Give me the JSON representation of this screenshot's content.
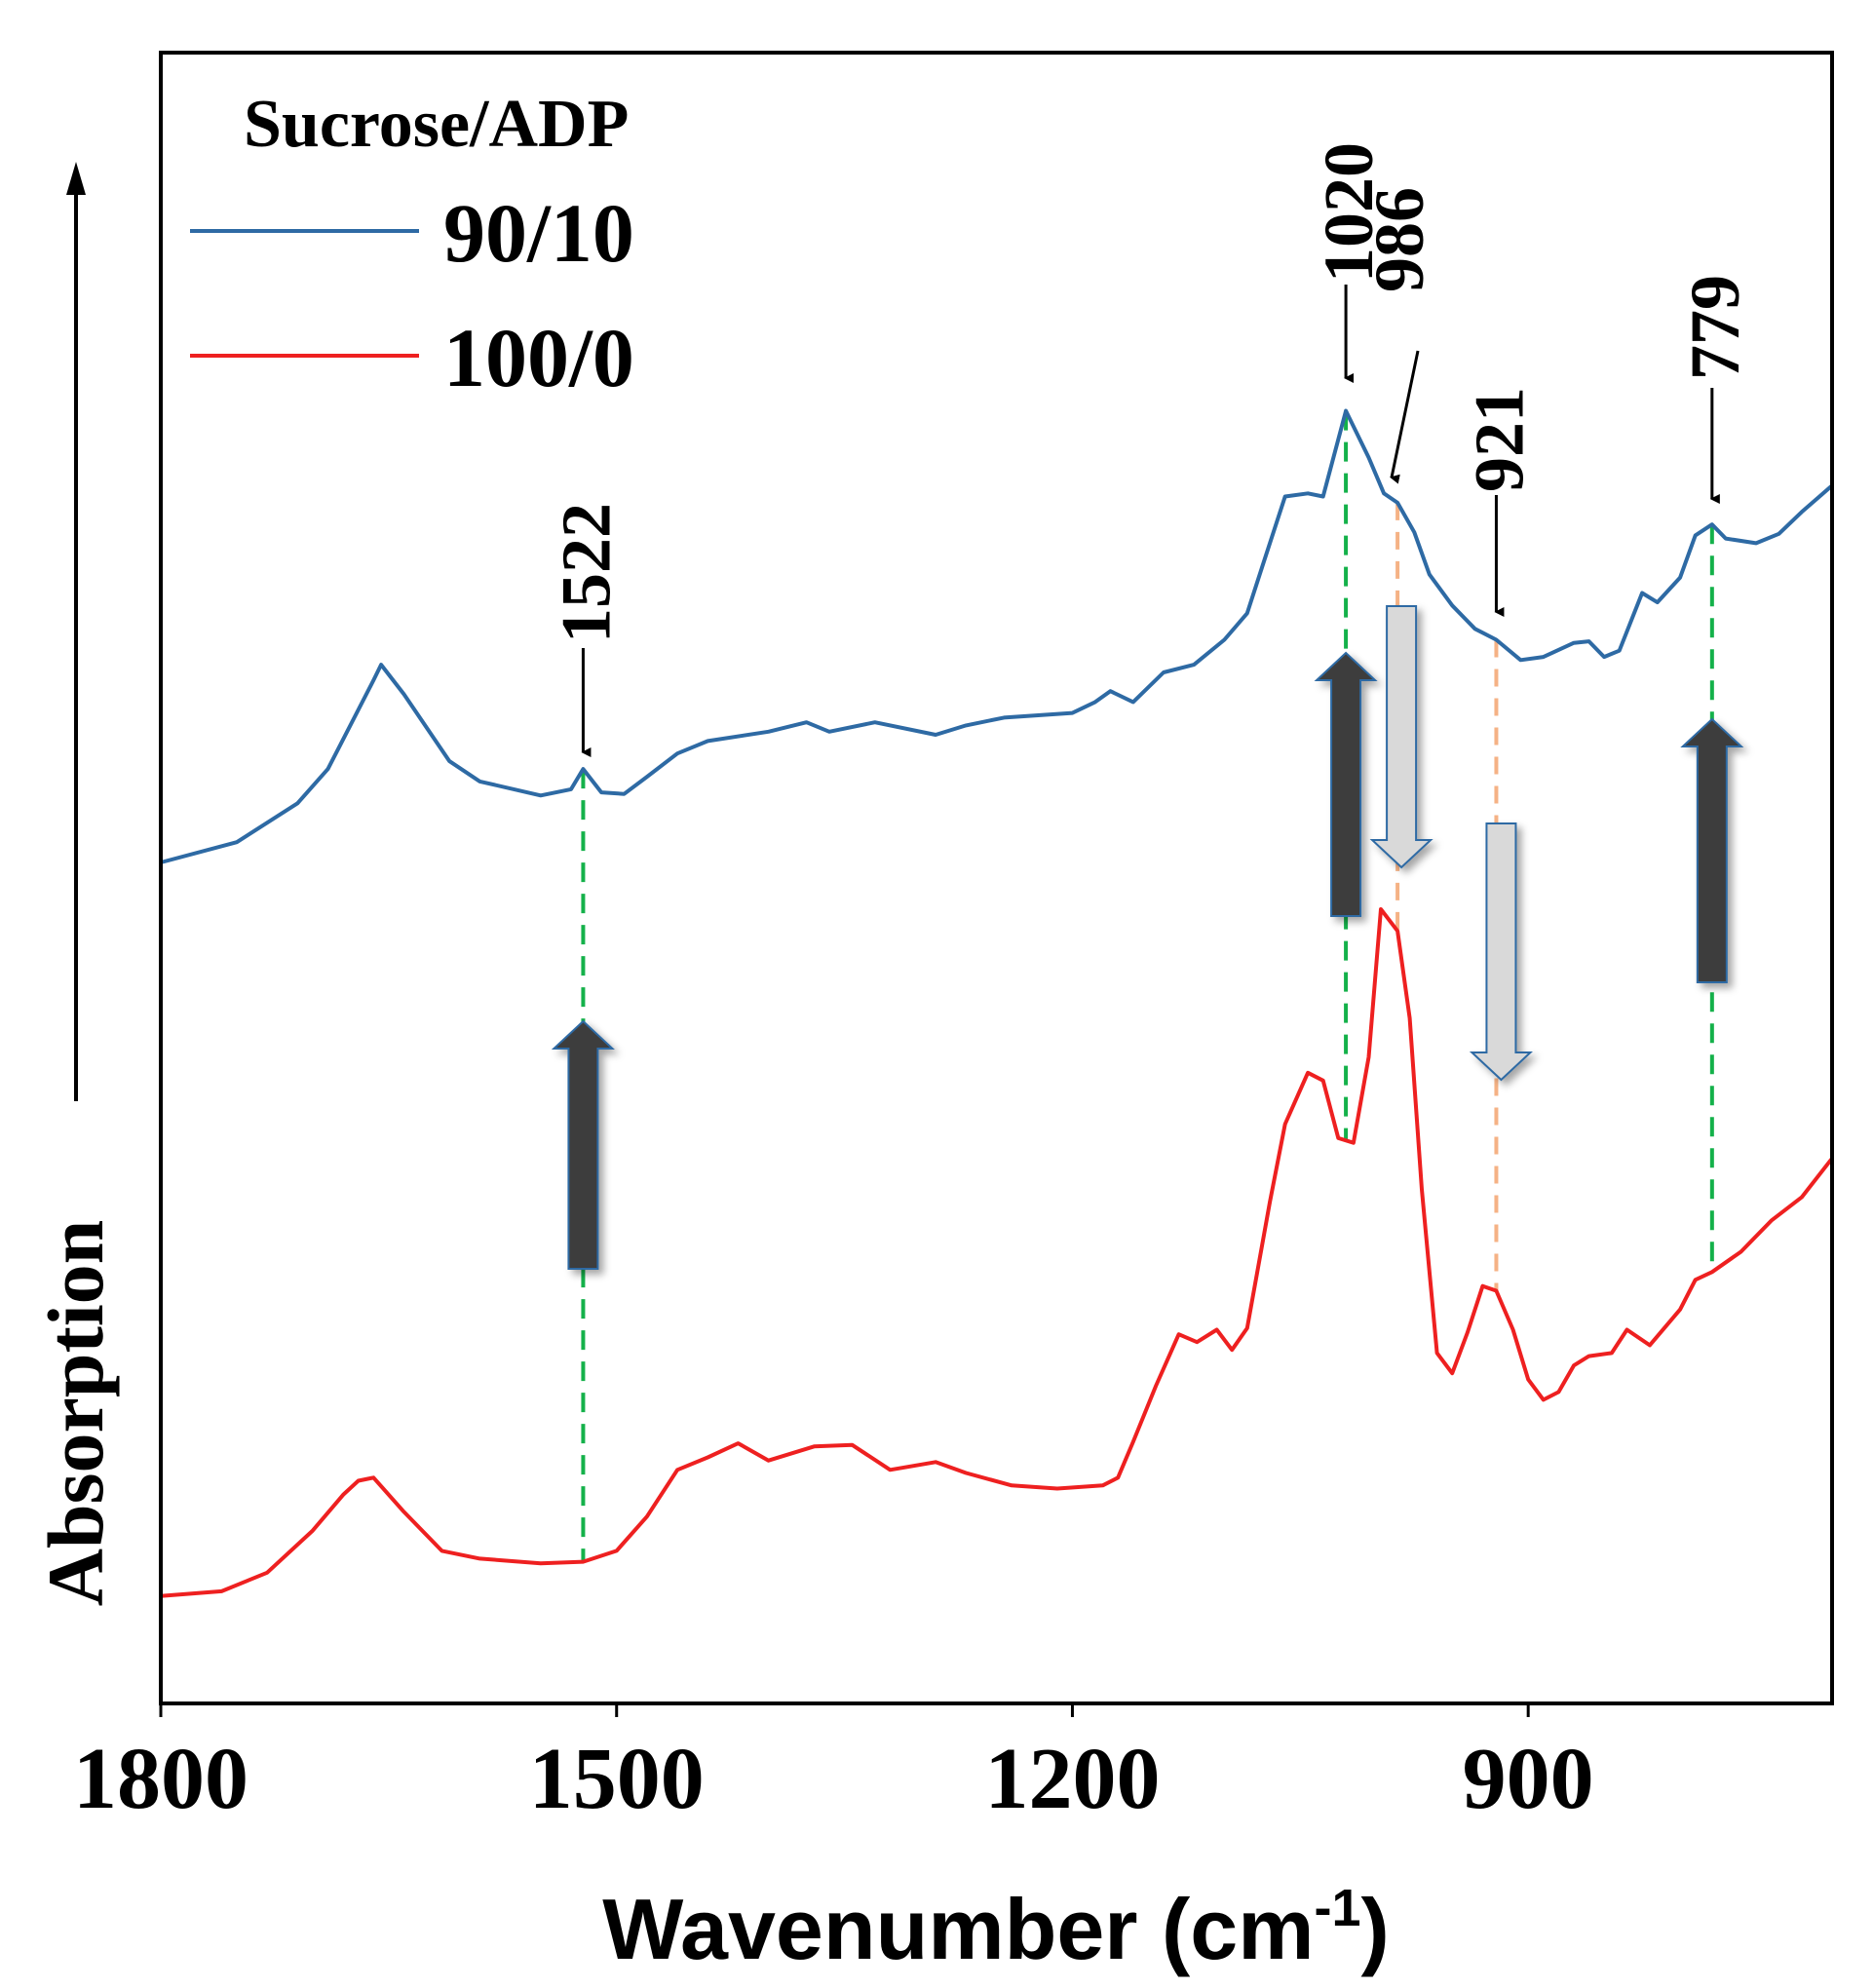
{
  "chart_data": {
    "type": "line",
    "title": "",
    "xlabel": "Wavenumber (cm",
    "xlabel_sup": "-1",
    "xlabel_close": ")",
    "ylabel": "Absorption",
    "xlim": [
      1800,
      700
    ],
    "ylim": [
      0,
      1.06
    ],
    "xticks": [
      1800,
      1500,
      1200,
      900
    ],
    "xtick_labels": [
      "1800",
      "1500",
      "1200",
      "900"
    ],
    "legend_title": "Sucrose/ADP",
    "legend_position": "top-left",
    "series": [
      {
        "name": "90/10",
        "color": "#2e6aa4",
        "x": [
          1800,
          1750,
          1710,
          1690,
          1660,
          1655,
          1640,
          1610,
          1590,
          1550,
          1530,
          1522,
          1510,
          1495,
          1480,
          1460,
          1440,
          1400,
          1375,
          1360,
          1330,
          1290,
          1270,
          1245,
          1200,
          1185,
          1175,
          1160,
          1140,
          1120,
          1100,
          1085,
          1075,
          1060,
          1045,
          1035,
          1020,
          1005,
          995,
          986,
          975,
          965,
          950,
          935,
          921,
          905,
          890,
          870,
          860,
          850,
          840,
          825,
          815,
          800,
          790,
          779,
          770,
          750,
          735,
          720,
          700
        ],
        "y": [
          0.54,
          0.553,
          0.578,
          0.6,
          0.657,
          0.667,
          0.648,
          0.605,
          0.592,
          0.583,
          0.587,
          0.6,
          0.585,
          0.584,
          0.595,
          0.61,
          0.618,
          0.624,
          0.63,
          0.624,
          0.63,
          0.622,
          0.628,
          0.633,
          0.636,
          0.643,
          0.65,
          0.643,
          0.662,
          0.667,
          0.683,
          0.7,
          0.73,
          0.775,
          0.777,
          0.775,
          0.83,
          0.8,
          0.777,
          0.771,
          0.752,
          0.725,
          0.705,
          0.69,
          0.683,
          0.67,
          0.672,
          0.681,
          0.682,
          0.672,
          0.676,
          0.713,
          0.707,
          0.723,
          0.75,
          0.757,
          0.748,
          0.745,
          0.751,
          0.765,
          0.782
        ]
      },
      {
        "name": "100/0",
        "color": "#ee2020",
        "x": [
          1800,
          1760,
          1730,
          1700,
          1680,
          1670,
          1660,
          1640,
          1615,
          1590,
          1550,
          1522,
          1500,
          1480,
          1460,
          1440,
          1420,
          1400,
          1370,
          1345,
          1320,
          1290,
          1270,
          1240,
          1210,
          1180,
          1170,
          1160,
          1145,
          1130,
          1118,
          1105,
          1095,
          1085,
          1070,
          1060,
          1045,
          1035,
          1025,
          1015,
          1005,
          997,
          986,
          978,
          970,
          960,
          950,
          940,
          930,
          921,
          910,
          900,
          890,
          880,
          870,
          860,
          845,
          835,
          820,
          800,
          790,
          779,
          760,
          740,
          720,
          700
        ],
        "y": [
          0.069,
          0.072,
          0.084,
          0.111,
          0.134,
          0.143,
          0.145,
          0.123,
          0.098,
          0.093,
          0.09,
          0.091,
          0.098,
          0.12,
          0.15,
          0.158,
          0.167,
          0.156,
          0.165,
          0.166,
          0.15,
          0.155,
          0.148,
          0.14,
          0.138,
          0.14,
          0.145,
          0.168,
          0.204,
          0.237,
          0.232,
          0.24,
          0.227,
          0.241,
          0.322,
          0.372,
          0.405,
          0.4,
          0.363,
          0.36,
          0.415,
          0.51,
          0.496,
          0.44,
          0.33,
          0.225,
          0.212,
          0.238,
          0.268,
          0.265,
          0.24,
          0.208,
          0.195,
          0.2,
          0.217,
          0.223,
          0.225,
          0.24,
          0.23,
          0.253,
          0.272,
          0.277,
          0.29,
          0.31,
          0.325,
          0.35
        ]
      }
    ],
    "annotations": [
      {
        "label": "1522",
        "x": 1522,
        "trend": "up"
      },
      {
        "label": "1020",
        "x": 1020,
        "trend": "up"
      },
      {
        "label": "986",
        "x": 986,
        "trend": "down"
      },
      {
        "label": "921",
        "x": 921,
        "trend": "down"
      },
      {
        "label": "779",
        "x": 779,
        "trend": "up"
      }
    ],
    "colors": {
      "up_arrow": "#3c3c3c",
      "down_arrow": "#d9d9d9",
      "arrow_edge": "#2e6aa4",
      "increase_guide": "#14b14a",
      "decrease_guide": "#f5b285"
    }
  }
}
